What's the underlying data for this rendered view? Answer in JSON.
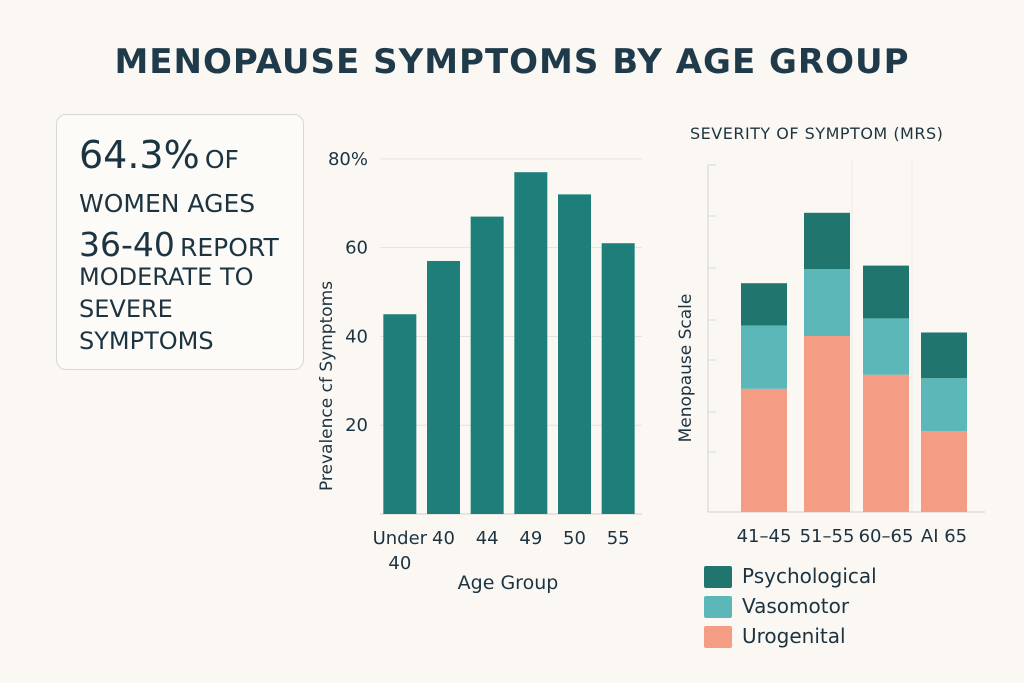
{
  "title": "MENOPAUSE SYMPTOMS BY AGE GROUP",
  "stat": {
    "percent": "64.3%",
    "of": "OF",
    "line2": "WOMEN AGES",
    "age_range": "36-40",
    "report": "REPORT",
    "line4": "MODERATE TO",
    "line5": "SEVERE",
    "line6": "SYMPTOMS"
  },
  "colors": {
    "teal": "#1e7f7a",
    "psychological": "#20766f",
    "vasomotor": "#5cb7b8",
    "urogenital": "#f59d84",
    "grid": "#e3e3e3",
    "text": "#1c3442"
  },
  "chart_data": [
    {
      "type": "bar",
      "title": "",
      "xlabel": "Age Group",
      "ylabel": "Prevalence cf Symptoms",
      "categories": [
        "Under 40",
        "40",
        "44",
        "49",
        "50",
        "55"
      ],
      "values": [
        45,
        57,
        67,
        77,
        72,
        61
      ],
      "ylim": [
        0,
        82
      ],
      "yticks": [
        {
          "value": 20,
          "label": "20"
        },
        {
          "value": 40,
          "label": "40"
        },
        {
          "value": 60,
          "label": "60"
        },
        {
          "value": 80,
          "label": "80%"
        }
      ]
    },
    {
      "type": "bar",
      "stacked": true,
      "title": "SEVERITY OF SYMPTOM (MRS)",
      "xlabel": "",
      "ylabel": "Menopause Scale",
      "categories": [
        "41–45",
        "51–55",
        "60–65",
        "AI 65"
      ],
      "ylim": [
        0,
        10
      ],
      "series": [
        {
          "name": "Urogenital",
          "values": [
            3.5,
            5.0,
            3.9,
            2.3
          ]
        },
        {
          "name": "Vasomotor",
          "values": [
            1.8,
            1.9,
            1.6,
            1.5
          ]
        },
        {
          "name": "Psychological",
          "values": [
            1.2,
            1.6,
            1.5,
            1.3
          ]
        }
      ],
      "legend": [
        "Psychological",
        "Vasomotor",
        "Urogenital"
      ]
    }
  ]
}
